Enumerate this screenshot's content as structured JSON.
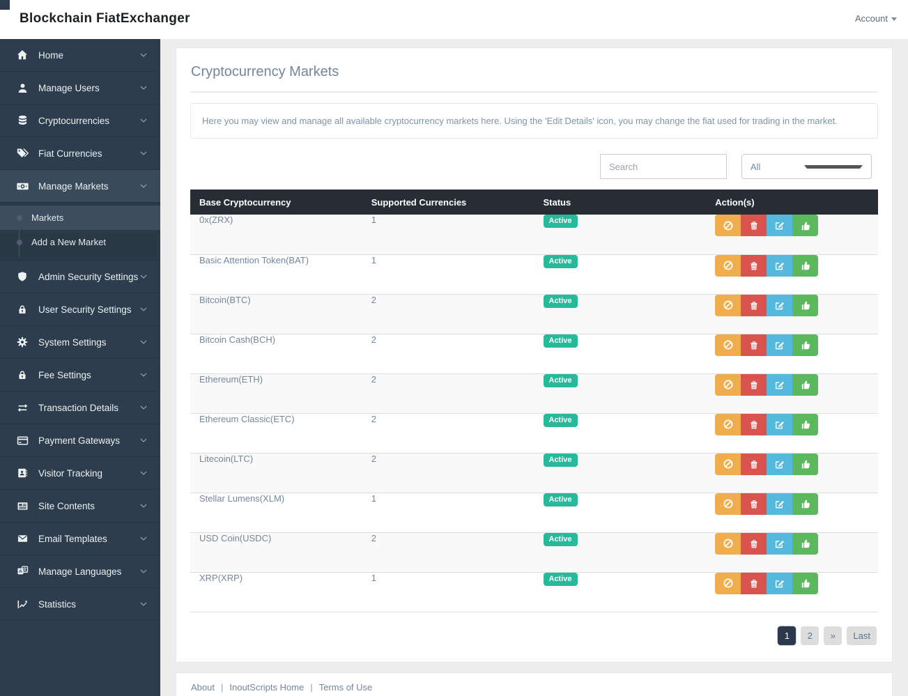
{
  "header": {
    "brand": "Blockchain FiatExchanger",
    "account_label": "Account"
  },
  "sidebar": {
    "items": [
      {
        "label": "Home",
        "icon": "home"
      },
      {
        "label": "Manage Users",
        "icon": "user"
      },
      {
        "label": "Cryptocurrencies",
        "icon": "database"
      },
      {
        "label": "Fiat Currencies",
        "icon": "tags"
      },
      {
        "label": "Manage Markets",
        "icon": "money",
        "active": true,
        "children": [
          "Markets",
          "Add a New Market"
        ],
        "active_child": "Markets"
      },
      {
        "label": "Admin Security Settings",
        "icon": "shield"
      },
      {
        "label": "User Security Settings",
        "icon": "lock"
      },
      {
        "label": "System Settings",
        "icon": "gear"
      },
      {
        "label": "Fee Settings",
        "icon": "lock"
      },
      {
        "label": "Transaction Details",
        "icon": "exchange"
      },
      {
        "label": "Payment Gateways",
        "icon": "credit-card"
      },
      {
        "label": "Visitor Tracking",
        "icon": "address-book"
      },
      {
        "label": "Site Contents",
        "icon": "newspaper"
      },
      {
        "label": "Email Templates",
        "icon": "envelope"
      },
      {
        "label": "Manage Languages",
        "icon": "language"
      },
      {
        "label": "Statistics",
        "icon": "chart"
      }
    ]
  },
  "main": {
    "title": "Cryptocurrency Markets",
    "description": "Here you may view and manage all available cryptocurrency markets here. Using the 'Edit Details' icon, you may change the fiat used for trading in the market.",
    "search_placeholder": "Search",
    "filter_selected": "All",
    "table": {
      "columns": [
        "Base Cryptocurrency",
        "Supported Currencies",
        "Status",
        "Action(s)"
      ],
      "rows": [
        {
          "base": "0x(ZRX)",
          "supported": "1",
          "status": "Active"
        },
        {
          "base": "Basic Attention Token(BAT)",
          "supported": "1",
          "status": "Active"
        },
        {
          "base": "Bitcoin(BTC)",
          "supported": "2",
          "status": "Active"
        },
        {
          "base": "Bitcoin Cash(BCH)",
          "supported": "2",
          "status": "Active"
        },
        {
          "base": "Ethereum(ETH)",
          "supported": "2",
          "status": "Active"
        },
        {
          "base": "Ethereum Classic(ETC)",
          "supported": "2",
          "status": "Active"
        },
        {
          "base": "Litecoin(LTC)",
          "supported": "2",
          "status": "Active"
        },
        {
          "base": "Stellar Lumens(XLM)",
          "supported": "1",
          "status": "Active"
        },
        {
          "base": "USD Coin(USDC)",
          "supported": "2",
          "status": "Active"
        },
        {
          "base": "XRP(XRP)",
          "supported": "1",
          "status": "Active"
        }
      ],
      "actions": [
        {
          "name": "deactivate",
          "icon": "ban",
          "color": "#f0ad4e"
        },
        {
          "name": "delete",
          "icon": "trash",
          "color": "#d9534f"
        },
        {
          "name": "edit-details",
          "icon": "edit",
          "color": "#54b9dd"
        },
        {
          "name": "approve",
          "icon": "thumbs-up",
          "color": "#5cb85c"
        }
      ]
    },
    "pagination": [
      {
        "label": "1",
        "active": true
      },
      {
        "label": "2",
        "active": false
      },
      {
        "label": "»",
        "active": false
      },
      {
        "label": "Last",
        "active": false
      }
    ]
  },
  "footer": {
    "links": [
      "About",
      "InoutScripts Home",
      "Terms of Use"
    ],
    "separator": "|"
  },
  "colors": {
    "sidebar_bg": "#2e3d4e",
    "sidebar_active_bg": "#394a5b",
    "submenu_bg": "#2b3947",
    "submenu_active_bg": "#3d4d5e",
    "table_header_bg": "#282d35",
    "badge_active": "#26b99a",
    "pagination_active_bg": "#2b394b",
    "link_color": "#73879c",
    "page_bg": "#ededee"
  }
}
